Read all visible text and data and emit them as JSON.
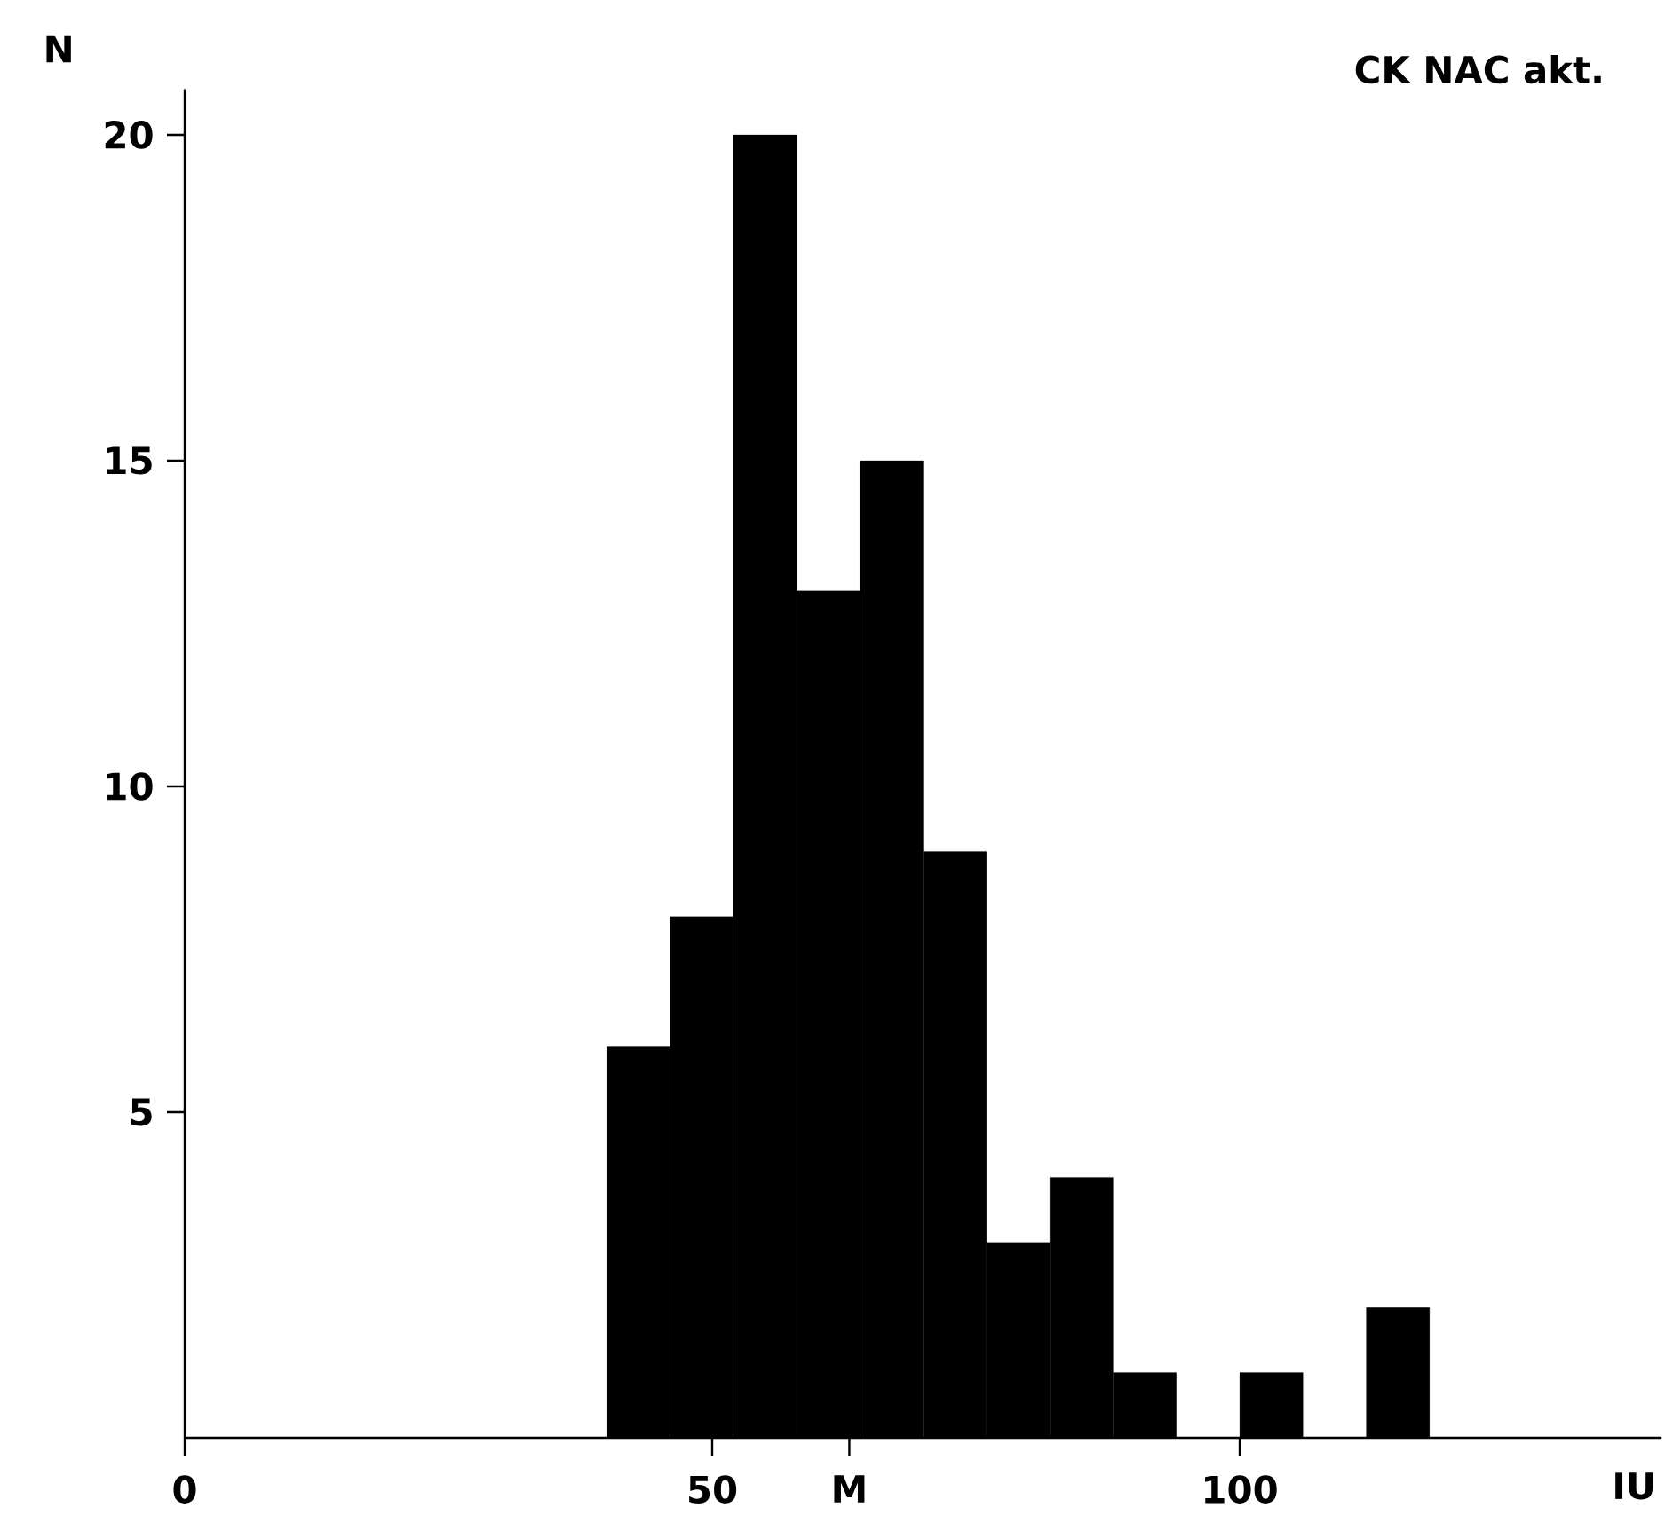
{
  "chart_data": {
    "type": "histogram",
    "title": "CK NAC akt.",
    "ylabel": "N",
    "xlabel": "IU",
    "bins": [
      40,
      46,
      52,
      58,
      64,
      70,
      76,
      82,
      88,
      94,
      100,
      106,
      112,
      118
    ],
    "values": [
      6,
      8,
      20,
      13,
      15,
      9,
      3,
      4,
      1,
      0,
      1,
      0,
      2
    ],
    "color": "#000000",
    "xlim": [
      0,
      140
    ],
    "ylim": [
      0,
      20.7
    ],
    "xticks": [
      0,
      50,
      {
        "value": 63,
        "label": "M"
      },
      100
    ],
    "yticks": [
      5,
      10,
      15,
      20
    ]
  }
}
